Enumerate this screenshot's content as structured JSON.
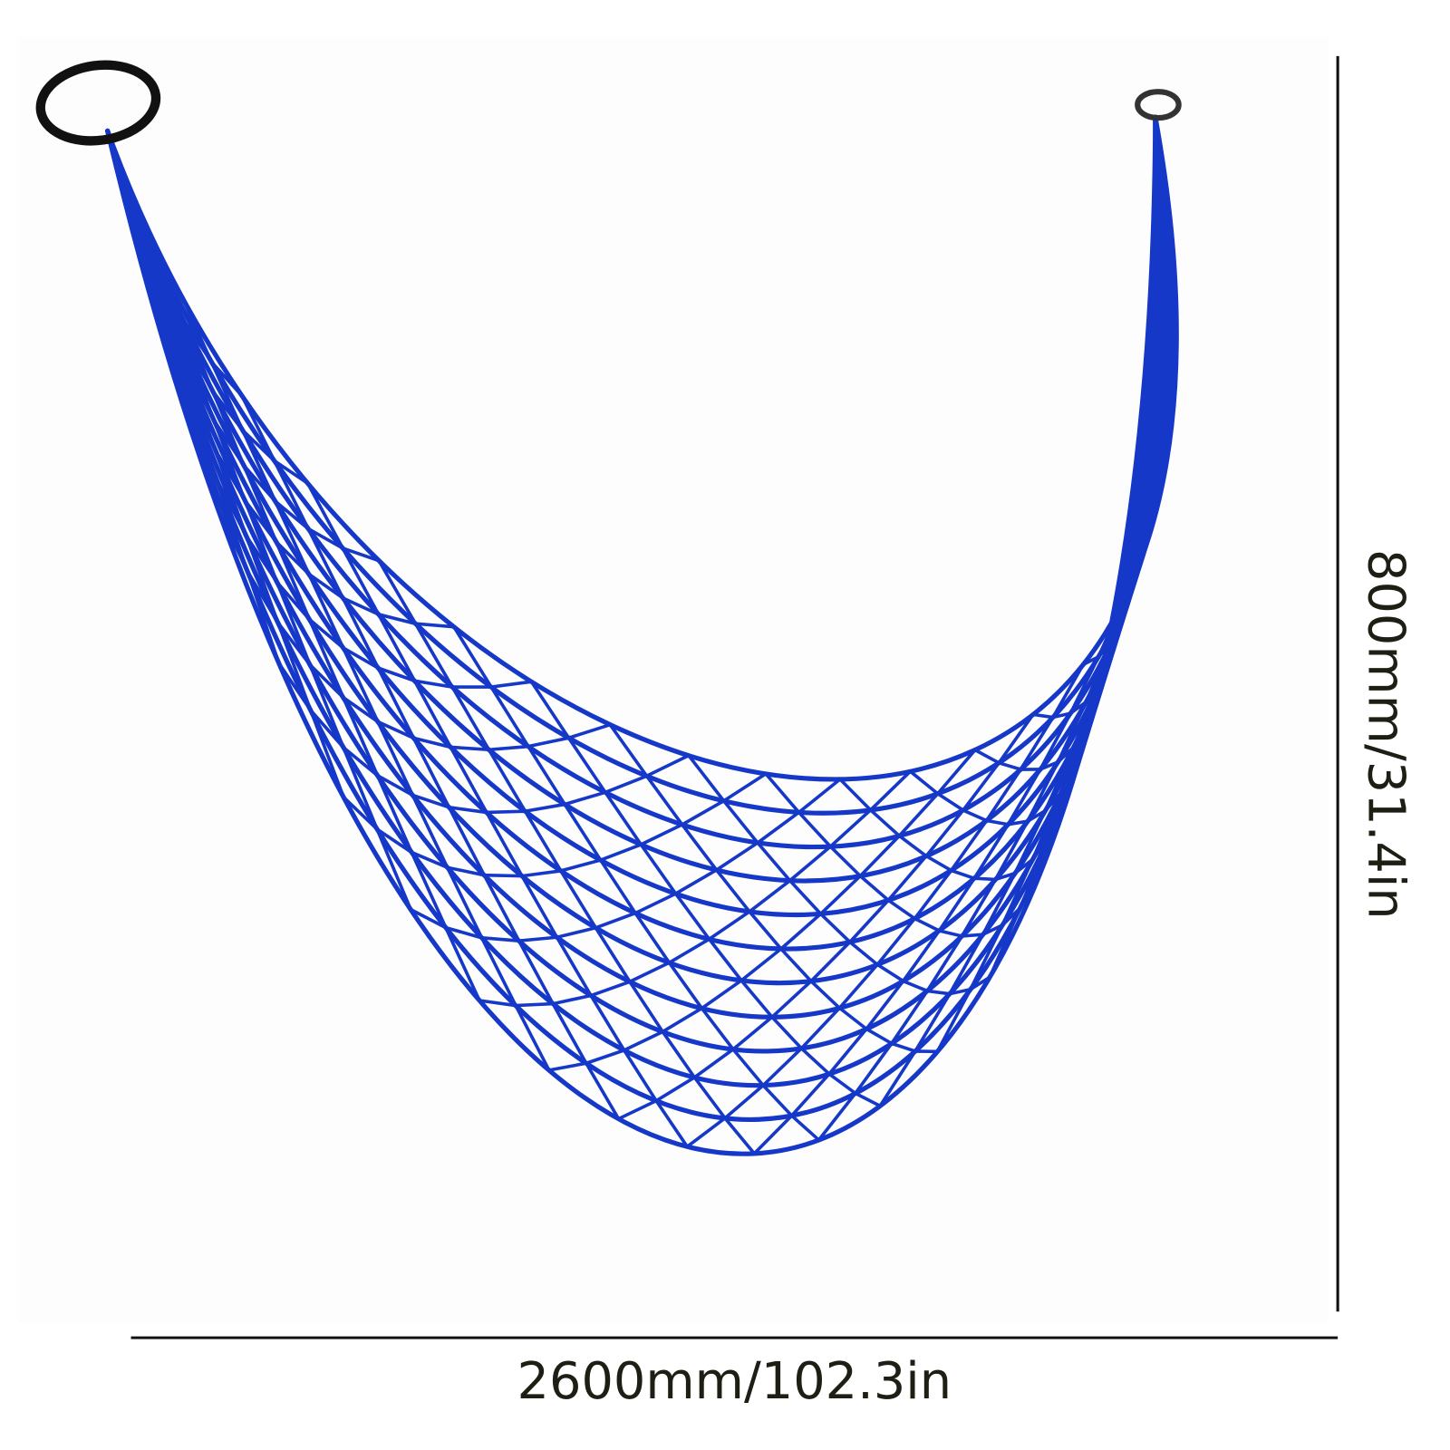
{
  "dimensions": {
    "width": "2600mm/102.3in",
    "height": "800mm/31.4in"
  }
}
